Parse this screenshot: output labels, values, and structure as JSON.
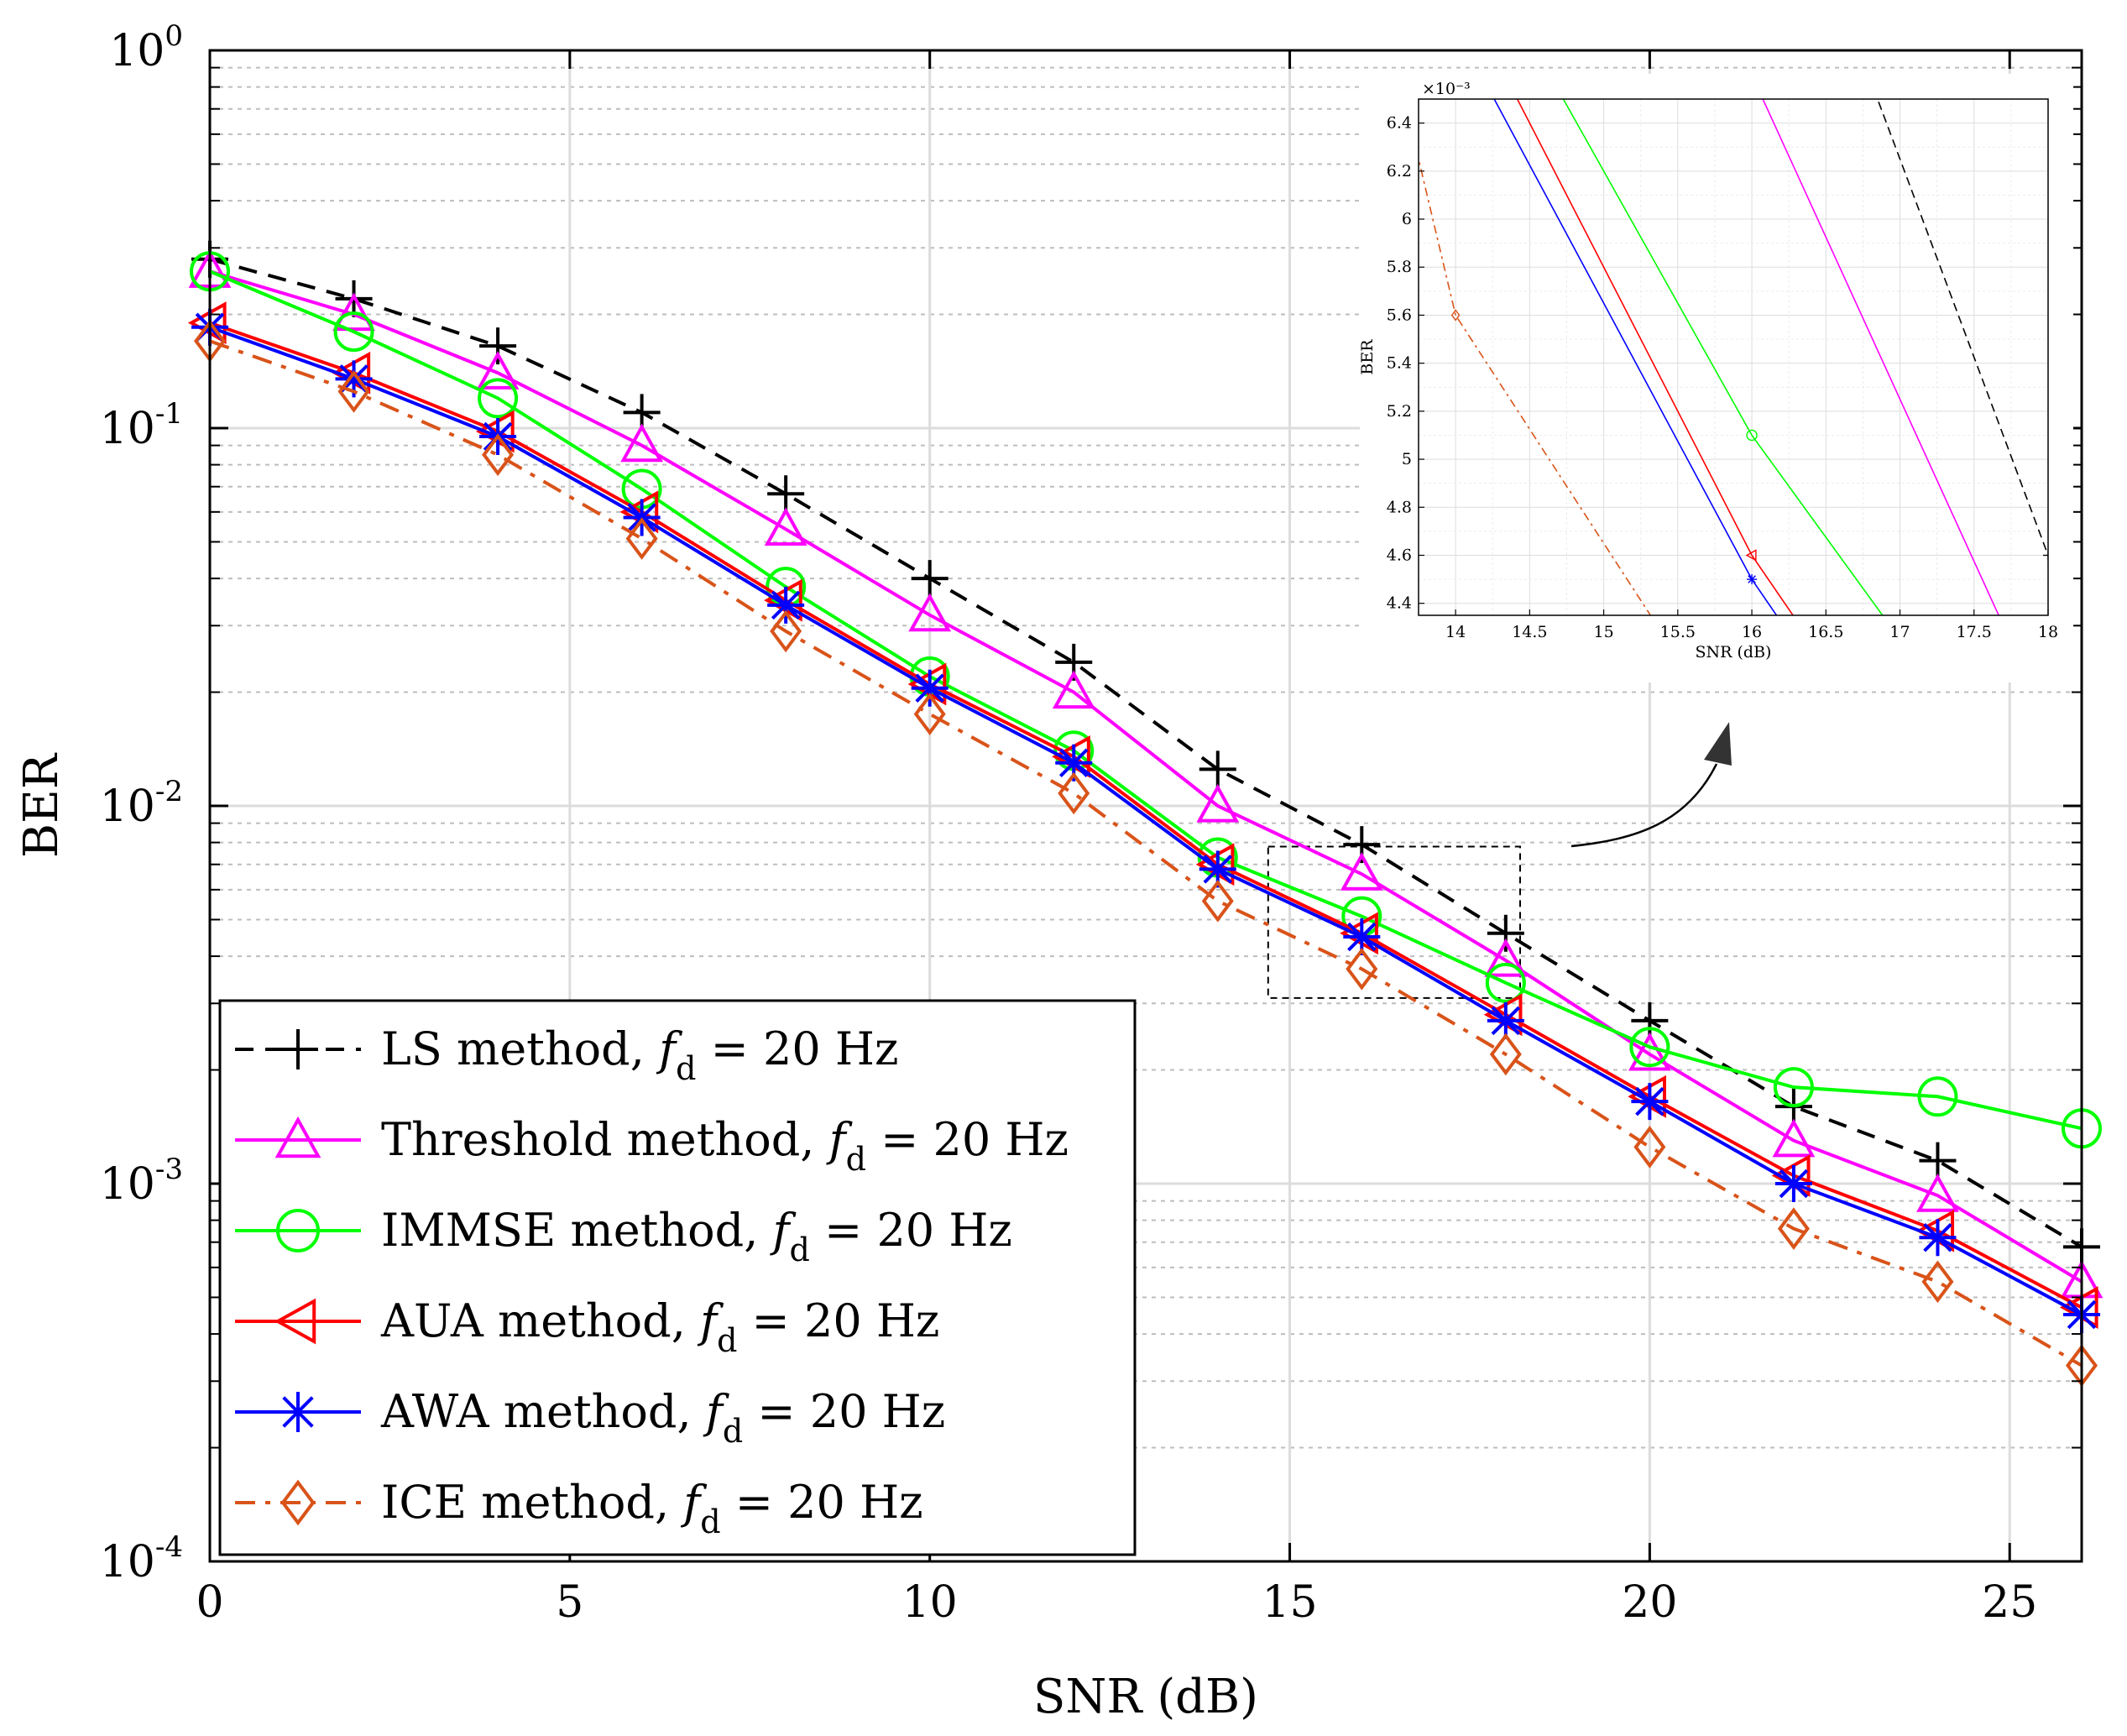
{
  "chart_data": {
    "type": "line",
    "xlabel": "SNR (dB)",
    "ylabel": "BER",
    "xlim": [
      0,
      26
    ],
    "ylim": [
      0.0001,
      1
    ],
    "yscale": "log",
    "grid": true,
    "legend_location": "bottom-left",
    "x_ticks": [
      "0",
      "5",
      "10",
      "15",
      "20",
      "25"
    ],
    "y_ticks": [
      {
        "base": "10",
        "exp": "0"
      },
      {
        "base": "10",
        "exp": "-1"
      },
      {
        "base": "10",
        "exp": "-2"
      },
      {
        "base": "10",
        "exp": "-3"
      },
      {
        "base": "10",
        "exp": "-4"
      }
    ],
    "x": [
      0,
      2,
      4,
      6,
      8,
      10,
      12,
      14,
      16,
      18,
      20,
      22,
      24,
      26
    ],
    "series": [
      {
        "name": "LS method",
        "legend_prefix": "LS method, ",
        "color": "#000000",
        "marker": "plus",
        "dash": "dashed",
        "values": [
          0.28,
          0.22,
          0.165,
          0.11,
          0.067,
          0.04,
          0.024,
          0.0125,
          0.0079,
          0.0046,
          0.0027,
          0.0016,
          0.00115,
          0.00068
        ]
      },
      {
        "name": "Threshold method",
        "legend_prefix": "Threshold method, ",
        "color": "#ff00ff",
        "marker": "triangle-up",
        "dash": "solid",
        "values": [
          0.26,
          0.2,
          0.14,
          0.09,
          0.054,
          0.032,
          0.02,
          0.01,
          0.0066,
          0.0039,
          0.0022,
          0.0013,
          0.00093,
          0.00055
        ]
      },
      {
        "name": "IMMSE method",
        "legend_prefix": "IMMSE method, ",
        "color": "#00ff00",
        "marker": "circle",
        "dash": "solid",
        "values": [
          0.26,
          0.18,
          0.12,
          0.069,
          0.038,
          0.022,
          0.014,
          0.0073,
          0.0051,
          0.0034,
          0.0023,
          0.0018,
          0.0017,
          0.0014
        ]
      },
      {
        "name": "AUA method",
        "legend_prefix": "AUA method, ",
        "color": "#ff0000",
        "marker": "triangle-left",
        "dash": "solid",
        "values": [
          0.19,
          0.14,
          0.098,
          0.06,
          0.035,
          0.021,
          0.0135,
          0.007,
          0.0046,
          0.0028,
          0.0017,
          0.00105,
          0.00075,
          0.00047
        ]
      },
      {
        "name": "AWA method",
        "legend_prefix": "AWA method, ",
        "color": "#0000ff",
        "marker": "asterisk",
        "dash": "solid",
        "values": [
          0.185,
          0.135,
          0.095,
          0.058,
          0.034,
          0.0205,
          0.013,
          0.0068,
          0.0045,
          0.0027,
          0.00165,
          0.001,
          0.00072,
          0.00045
        ]
      },
      {
        "name": "ICE method",
        "legend_prefix": "ICE method, ",
        "color": "#d95319",
        "marker": "diamond",
        "dash": "dashdot",
        "values": [
          0.17,
          0.125,
          0.085,
          0.051,
          0.029,
          0.0175,
          0.0108,
          0.0056,
          0.0037,
          0.0022,
          0.00125,
          0.00076,
          0.00055,
          0.00033
        ]
      }
    ],
    "legend_italic": "f",
    "legend_subscript": "d",
    "legend_suffix": " = 20 Hz",
    "zoom_region": {
      "x": [
        14.7,
        18.2
      ],
      "y": [
        0.0031,
        0.0078
      ]
    },
    "inset": {
      "xlabel": "SNR (dB)",
      "ylabel": "BER",
      "xlim": [
        13.75,
        18
      ],
      "ylim": [
        4.35,
        6.5
      ],
      "y_multiplier": "×10⁻³",
      "x_ticks": [
        "14",
        "14.5",
        "15",
        "15.5",
        "16",
        "16.5",
        "17",
        "17.5",
        "18"
      ],
      "y_ticks": [
        "4.4",
        "4.6",
        "4.8",
        "5",
        "5.2",
        "5.4",
        "5.6",
        "5.8",
        "6",
        "6.2",
        "6.4"
      ]
    }
  }
}
